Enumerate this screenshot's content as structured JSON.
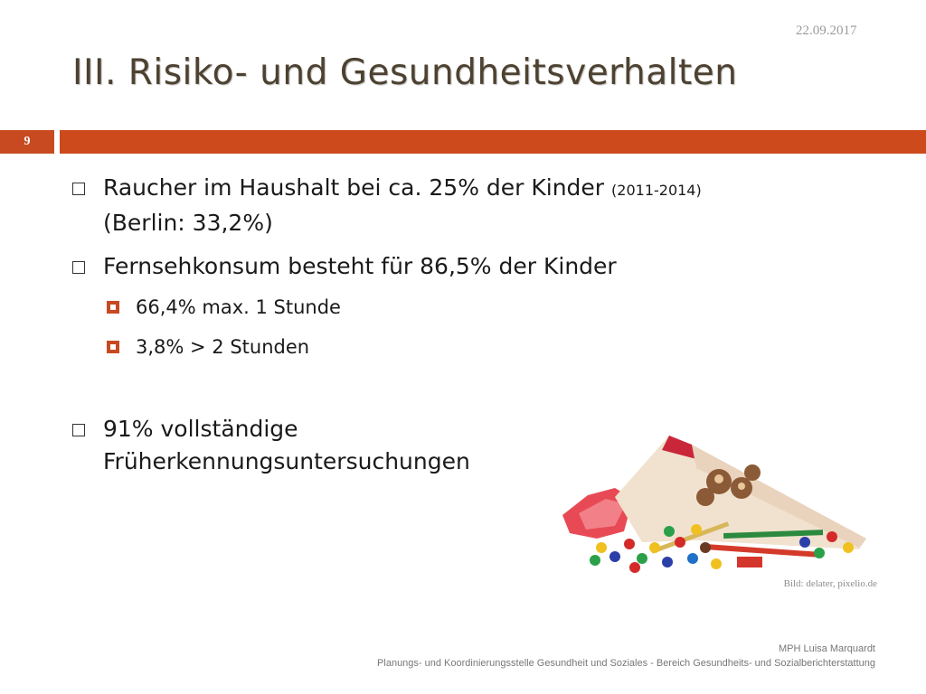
{
  "date": "22.09.2017",
  "title": "III. Risiko- und Gesundheitsverhalten",
  "slide_number": "9",
  "bullets": [
    {
      "text": "Raucher im Haushalt bei ca. 25% der Kinder ",
      "small": "(2011-2014)",
      "line2": "(Berlin: 33,2%)"
    },
    {
      "text": "Fernsehkonsum besteht für 86,5% der Kinder"
    },
    {
      "text": "91% vollständige",
      "line2": "Früherkennungsuntersuchungen"
    }
  ],
  "subbullets": [
    "66,4% max. 1 Stunde",
    "3,8% > 2 Stunden"
  ],
  "image": {
    "icon": "school-cone-candy-image"
  },
  "image_credit": "Bild: delater, pixelio.de",
  "footer": {
    "author": "MPH Luisa Marquardt",
    "department": "Planungs- und Koordinierungsstelle Gesundheit und Soziales  - Bereich Gesundheits- und Sozialberichterstattung"
  },
  "colors": {
    "accent": "#cc4a1c",
    "title": "#4d4130"
  }
}
